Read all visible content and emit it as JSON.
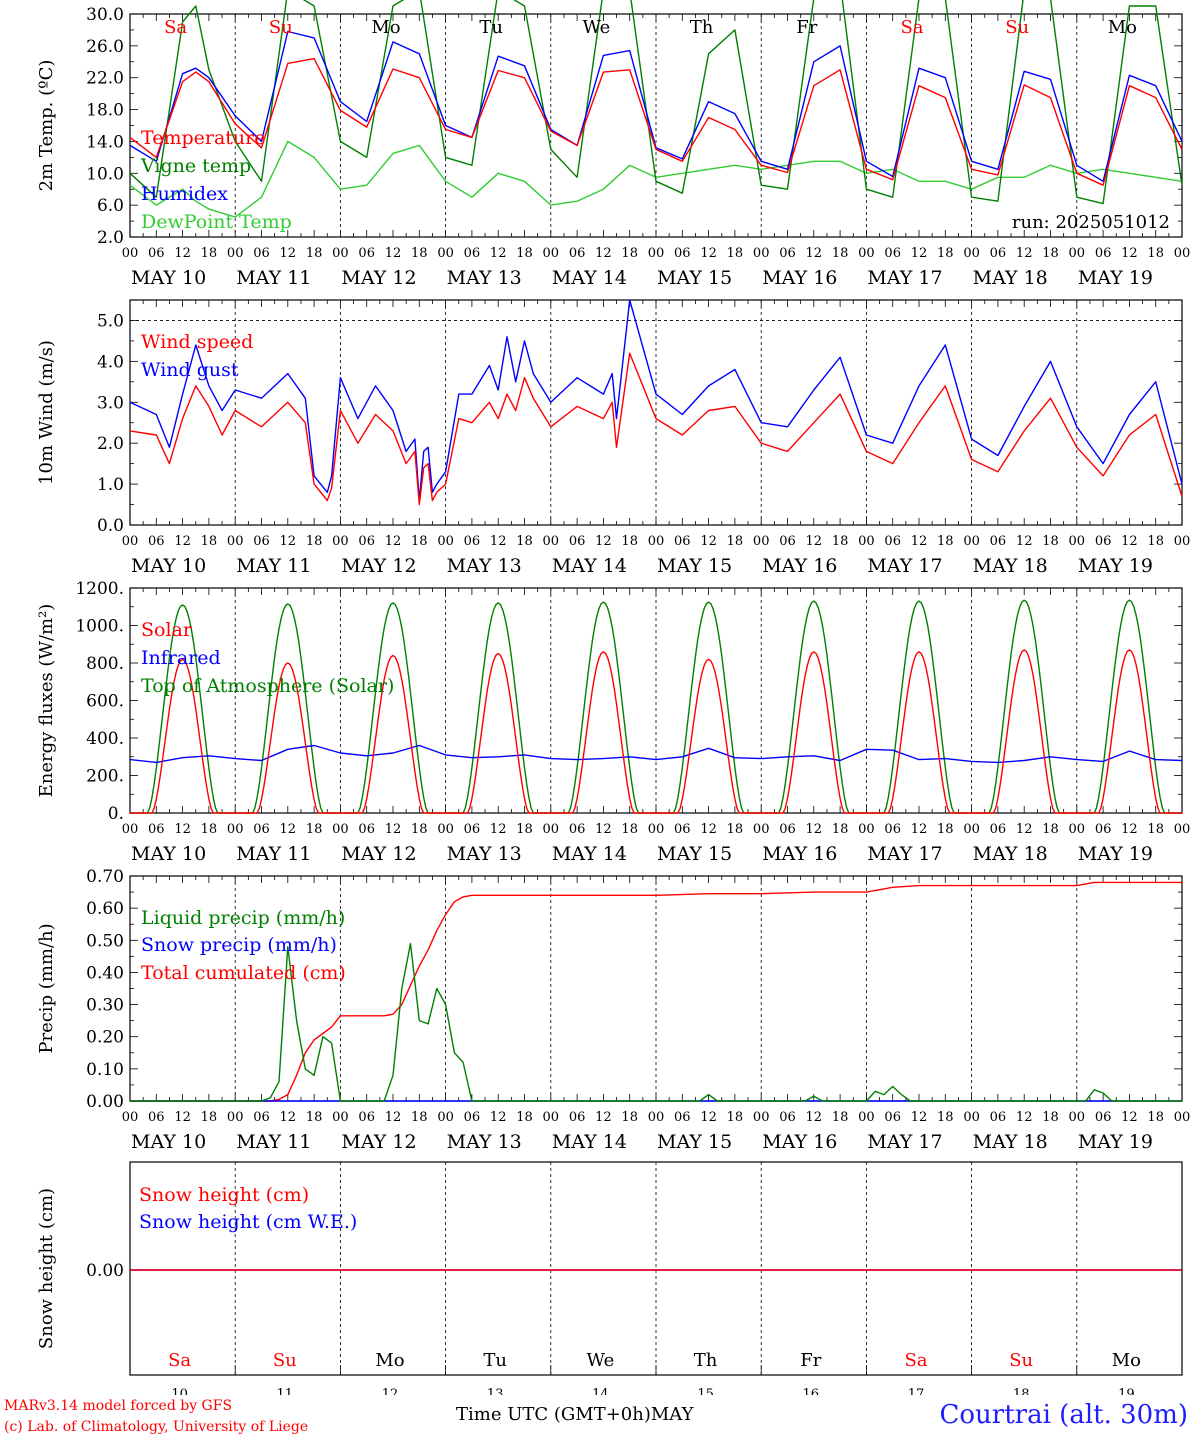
{
  "days": {
    "weekday": [
      "Sa",
      "Su",
      "Mo",
      "Tu",
      "We",
      "Th",
      "Fr",
      "Sa",
      "Su",
      "Mo"
    ],
    "weekday_color": [
      "#ff0000",
      "#ff0000",
      "#000000",
      "#000000",
      "#000000",
      "#000000",
      "#000000",
      "#ff0000",
      "#ff0000",
      "#000000"
    ],
    "date_label": [
      "MAY 10",
      "MAY 11",
      "MAY 12",
      "MAY 13",
      "MAY 14",
      "MAY 15",
      "MAY 16",
      "MAY 17",
      "MAY 18",
      "MAY 19"
    ],
    "day_number": [
      "10",
      "11",
      "12",
      "13",
      "14",
      "15",
      "16",
      "17",
      "18",
      "19"
    ],
    "hour_ticks": [
      "00",
      "06",
      "12",
      "18"
    ],
    "end_hour": "00"
  },
  "footer": {
    "credit_line1": "MARv3.14 model forced by GFS",
    "credit_line2": "(c) Lab. of Climatology, University of Liege",
    "xaxis_title": "Time UTC (GMT+0h)MAY",
    "station": "Courtrai (alt. 30m)"
  },
  "chart_data": [
    {
      "type": "line",
      "ylabel": "2m Temp. (ºC)",
      "ylim": [
        2,
        30
      ],
      "yticks": [
        "2.0",
        "6.0",
        "10.0",
        "14.0",
        "18.0",
        "22.0",
        "26.0",
        "30.0"
      ],
      "annotation": "run: 2025051012",
      "x_unit": "hours since 2025-05-10 00 UTC",
      "series": [
        {
          "name": "Temperature",
          "color": "#ff0000",
          "x": [
            0,
            6,
            12,
            15,
            18,
            24,
            30,
            36,
            42,
            48,
            54,
            60,
            66,
            72,
            78,
            84,
            90,
            96,
            102,
            108,
            114,
            120,
            126,
            132,
            138,
            144,
            150,
            156,
            162,
            168,
            174,
            180,
            186,
            192,
            198,
            204,
            210,
            216,
            222,
            228,
            234,
            240
          ],
          "y": [
            14.5,
            12.0,
            21.5,
            22.7,
            21.5,
            16.2,
            13.2,
            23.8,
            24.4,
            17.9,
            15.8,
            23.1,
            22.0,
            15.5,
            14.5,
            22.9,
            22.0,
            15.3,
            13.5,
            22.7,
            23.0,
            13.0,
            11.5,
            17.0,
            15.5,
            11.0,
            10.1,
            21.0,
            23.0,
            10.5,
            9.2,
            21.0,
            19.5,
            10.5,
            9.8,
            21.1,
            19.5,
            10.0,
            8.5,
            21.0,
            19.5,
            13.0
          ]
        },
        {
          "name": "Vigne temp",
          "color": "#008000",
          "x": [
            0,
            6,
            12,
            15,
            18,
            24,
            30,
            36,
            42,
            48,
            54,
            60,
            66,
            72,
            78,
            84,
            90,
            96,
            102,
            108,
            114,
            120,
            126,
            132,
            138,
            144,
            150,
            156,
            162,
            168,
            174,
            180,
            186,
            192,
            198,
            204,
            210,
            216,
            222,
            228,
            234,
            240
          ],
          "y": [
            10.0,
            7.0,
            29.0,
            31.0,
            23.0,
            14.0,
            9.0,
            33.0,
            31.0,
            14.0,
            12.0,
            31.0,
            33.0,
            12.0,
            11.0,
            33.0,
            31.0,
            13.0,
            9.5,
            33.0,
            33.0,
            9.0,
            7.5,
            25.0,
            28.0,
            8.5,
            8.0,
            32.0,
            34.0,
            8.0,
            7.0,
            32.0,
            32.0,
            7.0,
            6.5,
            33.0,
            32.0,
            7.0,
            6.2,
            31.0,
            31.0,
            8.5
          ]
        },
        {
          "name": "Humidex",
          "color": "#0000ff",
          "x": [
            0,
            6,
            12,
            15,
            18,
            24,
            30,
            36,
            42,
            48,
            54,
            60,
            66,
            72,
            78,
            84,
            90,
            96,
            102,
            108,
            114,
            120,
            126,
            132,
            138,
            144,
            150,
            156,
            162,
            168,
            174,
            180,
            186,
            192,
            198,
            204,
            210,
            216,
            222,
            228,
            234,
            240
          ],
          "y": [
            13.5,
            11.5,
            22.5,
            23.2,
            22.0,
            17.2,
            14.0,
            27.8,
            27.0,
            19.0,
            16.5,
            26.5,
            25.0,
            16.0,
            14.5,
            24.7,
            23.5,
            15.5,
            13.5,
            24.8,
            25.4,
            13.2,
            11.8,
            19.0,
            17.5,
            11.5,
            10.5,
            24.0,
            26.0,
            11.5,
            9.6,
            23.2,
            22.0,
            11.5,
            10.5,
            22.8,
            21.8,
            11.0,
            9.0,
            22.3,
            21.0,
            14.0
          ]
        },
        {
          "name": "DewPoint Temp",
          "color": "#33cc33",
          "x": [
            0,
            6,
            12,
            15,
            18,
            24,
            30,
            36,
            42,
            48,
            54,
            60,
            66,
            72,
            78,
            84,
            90,
            96,
            102,
            108,
            114,
            120,
            126,
            132,
            138,
            144,
            150,
            156,
            162,
            168,
            174,
            180,
            186,
            192,
            198,
            204,
            210,
            216,
            222,
            228,
            234,
            240
          ],
          "y": [
            8.5,
            6.0,
            8.0,
            6.5,
            5.5,
            4.5,
            7.0,
            14.0,
            12.0,
            8.0,
            8.5,
            12.5,
            13.5,
            9.0,
            7.0,
            10.0,
            9.0,
            6.0,
            6.5,
            8.0,
            11.0,
            9.5,
            10.0,
            10.5,
            11.0,
            10.5,
            11.0,
            11.5,
            11.5,
            10.0,
            10.5,
            9.0,
            9.0,
            8.0,
            9.5,
            9.5,
            11.0,
            10.0,
            10.5,
            10.0,
            9.5,
            9.0
          ]
        }
      ]
    },
    {
      "type": "line",
      "ylabel": "10m Wind (m/s)",
      "ylim": [
        0,
        5.5
      ],
      "yticks": [
        "0.0",
        "1.0",
        "2.0",
        "3.0",
        "4.0",
        "5.0"
      ],
      "x_unit": "hours since 2025-05-10 00 UTC",
      "series": [
        {
          "name": "Wind speed",
          "color": "#ff0000",
          "x": [
            0,
            6,
            9,
            12,
            15,
            18,
            21,
            24,
            30,
            36,
            40,
            42,
            45,
            46,
            48,
            52,
            56,
            60,
            63,
            65,
            66,
            67,
            68,
            69,
            70,
            72,
            75,
            78,
            82,
            84,
            86,
            88,
            90,
            92,
            96,
            102,
            108,
            110,
            111,
            114,
            120,
            126,
            132,
            138,
            144,
            150,
            156,
            162,
            168,
            174,
            180,
            186,
            192,
            198,
            204,
            210,
            216,
            222,
            228,
            234,
            240
          ],
          "y": [
            2.3,
            2.2,
            1.5,
            2.6,
            3.4,
            2.9,
            2.2,
            2.8,
            2.4,
            3.0,
            2.5,
            1.0,
            0.6,
            0.9,
            2.8,
            2.0,
            2.7,
            2.3,
            1.5,
            1.8,
            0.5,
            1.4,
            1.5,
            0.6,
            0.8,
            1.0,
            2.6,
            2.5,
            3.0,
            2.6,
            3.2,
            2.8,
            3.6,
            3.1,
            2.4,
            2.9,
            2.6,
            3.0,
            1.9,
            4.2,
            2.6,
            2.2,
            2.8,
            2.9,
            2.0,
            1.8,
            2.5,
            3.2,
            1.8,
            1.5,
            2.5,
            3.4,
            1.6,
            1.3,
            2.3,
            3.1,
            1.9,
            1.2,
            2.2,
            2.7,
            0.7
          ]
        },
        {
          "name": "Wind gust",
          "color": "#0000ff",
          "x": [
            0,
            6,
            9,
            12,
            15,
            18,
            21,
            24,
            30,
            36,
            40,
            42,
            45,
            46,
            48,
            52,
            56,
            60,
            63,
            65,
            66,
            67,
            68,
            69,
            70,
            72,
            75,
            78,
            82,
            84,
            86,
            88,
            90,
            92,
            96,
            102,
            108,
            110,
            111,
            114,
            120,
            126,
            132,
            138,
            144,
            150,
            156,
            162,
            168,
            174,
            180,
            186,
            192,
            198,
            204,
            210,
            216,
            222,
            228,
            234,
            240
          ],
          "y": [
            3.0,
            2.7,
            1.9,
            3.2,
            4.4,
            3.4,
            2.8,
            3.3,
            3.1,
            3.7,
            3.1,
            1.2,
            0.8,
            1.2,
            3.6,
            2.6,
            3.4,
            2.8,
            1.8,
            2.1,
            0.6,
            1.8,
            1.9,
            0.8,
            1.0,
            1.3,
            3.2,
            3.2,
            3.9,
            3.3,
            4.6,
            3.5,
            4.5,
            3.7,
            3.0,
            3.6,
            3.2,
            3.7,
            2.6,
            5.5,
            3.2,
            2.7,
            3.4,
            3.8,
            2.5,
            2.4,
            3.3,
            4.1,
            2.2,
            2.0,
            3.4,
            4.4,
            2.1,
            1.7,
            2.9,
            4.0,
            2.4,
            1.5,
            2.7,
            3.5,
            1.0
          ]
        }
      ]
    },
    {
      "type": "line",
      "ylabel": "Energy fluxes (W/m²)",
      "ylim": [
        0,
        1200
      ],
      "yticks": [
        "0.",
        "200.",
        "400.",
        "600.",
        "800.",
        "1000.",
        "1200."
      ],
      "x_unit": "hours since 2025-05-10 00 UTC",
      "series": [
        {
          "name": "Solar",
          "color": "#ff0000",
          "peaks": [
            820,
            800,
            840,
            850,
            860,
            820,
            860,
            860,
            870,
            870
          ]
        },
        {
          "name": "Infrared",
          "color": "#0000ff",
          "x": [
            0,
            6,
            12,
            18,
            24,
            30,
            36,
            42,
            48,
            54,
            60,
            66,
            72,
            78,
            84,
            90,
            96,
            102,
            108,
            114,
            120,
            126,
            132,
            138,
            144,
            150,
            156,
            162,
            168,
            174,
            180,
            186,
            192,
            198,
            204,
            210,
            216,
            222,
            228,
            234,
            240
          ],
          "y": [
            285,
            270,
            295,
            305,
            290,
            280,
            340,
            360,
            320,
            305,
            320,
            360,
            310,
            295,
            300,
            310,
            290,
            285,
            290,
            300,
            285,
            300,
            345,
            295,
            290,
            300,
            305,
            280,
            340,
            335,
            285,
            290,
            275,
            270,
            280,
            300,
            285,
            275,
            330,
            285,
            280
          ]
        },
        {
          "name": "Top of Atmosphere (Solar)",
          "color": "#008000",
          "peaks": [
            1110,
            1115,
            1120,
            1120,
            1125,
            1125,
            1130,
            1130,
            1135,
            1135
          ]
        }
      ]
    },
    {
      "type": "line",
      "ylabel": "Precip (mm/h)",
      "ylim": [
        0,
        0.7
      ],
      "yticks": [
        "0.00",
        "0.10",
        "0.20",
        "0.30",
        "0.40",
        "0.50",
        "0.60",
        "0.70"
      ],
      "x_unit": "hours since 2025-05-10 00 UTC",
      "series": [
        {
          "name": "Liquid precip (mm/h)",
          "color": "#008000",
          "x": [
            0,
            30,
            32,
            34,
            36,
            38,
            40,
            42,
            44,
            46,
            48,
            58,
            60,
            62,
            64,
            66,
            68,
            70,
            72,
            74,
            76,
            78,
            130,
            132,
            134,
            154,
            156,
            158,
            168,
            170,
            172,
            174,
            176,
            178,
            192,
            218,
            220,
            222,
            224,
            240
          ],
          "y": [
            0,
            0,
            0.01,
            0.06,
            0.48,
            0.25,
            0.1,
            0.08,
            0.2,
            0.18,
            0,
            0,
            0.08,
            0.35,
            0.49,
            0.25,
            0.24,
            0.35,
            0.3,
            0.15,
            0.12,
            0,
            0,
            0.02,
            0,
            0,
            0.015,
            0,
            0,
            0.03,
            0.02,
            0.045,
            0.02,
            0,
            0,
            0,
            0.035,
            0.025,
            0,
            0
          ]
        },
        {
          "name": "Snow precip (mm/h)",
          "color": "#0000ff",
          "x": [
            0,
            240
          ],
          "y": [
            0,
            0
          ]
        },
        {
          "name": "Total cumulated (cm)",
          "color": "#ff0000",
          "x": [
            0,
            32,
            34,
            36,
            38,
            40,
            42,
            44,
            46,
            48,
            54,
            58,
            60,
            62,
            64,
            66,
            68,
            70,
            72,
            74,
            76,
            78,
            120,
            132,
            144,
            156,
            168,
            172,
            174,
            180,
            210,
            216,
            220,
            240
          ],
          "y": [
            0,
            0,
            0.005,
            0.02,
            0.08,
            0.15,
            0.19,
            0.21,
            0.23,
            0.265,
            0.265,
            0.265,
            0.27,
            0.3,
            0.36,
            0.42,
            0.47,
            0.53,
            0.58,
            0.62,
            0.635,
            0.64,
            0.64,
            0.645,
            0.645,
            0.65,
            0.65,
            0.66,
            0.665,
            0.67,
            0.67,
            0.67,
            0.68,
            0.68
          ]
        }
      ]
    },
    {
      "type": "line",
      "ylabel": "Snow height (cm)",
      "yticks": [
        "0.00"
      ],
      "x_unit": "hours since 2025-05-10 00 UTC",
      "series": [
        {
          "name": "Snow height (cm)",
          "color": "#ff0000",
          "x": [
            0,
            240
          ],
          "y": [
            0,
            0
          ]
        },
        {
          "name": "Snow height (cm W.E.)",
          "color": "#0000ff",
          "x": [
            0,
            240
          ],
          "y": [
            0,
            0
          ]
        }
      ]
    }
  ]
}
